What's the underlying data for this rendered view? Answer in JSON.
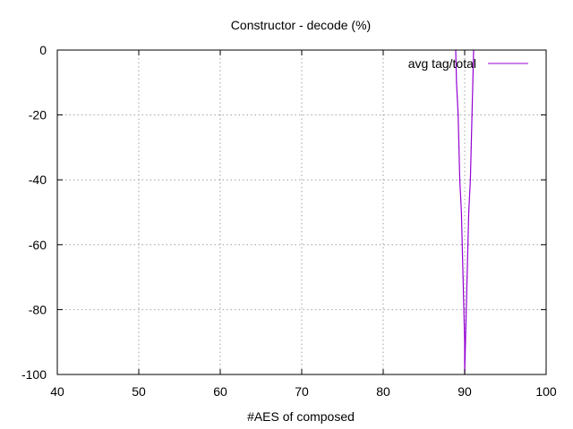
{
  "chart_data": {
    "type": "line",
    "title": "Constructor - decode (%)",
    "xlabel": "#AES of composed",
    "ylabel": "",
    "xlim": [
      40,
      100
    ],
    "ylim": [
      -100,
      0
    ],
    "x_ticks": [
      40,
      50,
      60,
      70,
      80,
      90,
      100
    ],
    "y_ticks": [
      0,
      -20,
      -40,
      -60,
      -80,
      -100
    ],
    "x_tick_labels": [
      "40",
      "50",
      "60",
      "70",
      "80",
      "90",
      "100"
    ],
    "y_tick_labels": [
      "0",
      "-20",
      "-40",
      "-60",
      "-80",
      "-100"
    ],
    "grid": true,
    "legend_position": "top-right",
    "series": [
      {
        "name": "avg tag/total",
        "color": "#9400d3",
        "points": [
          {
            "x": 88.9,
            "y": 0
          },
          {
            "x": 89.0,
            "y": -10
          },
          {
            "x": 89.2,
            "y": -20
          },
          {
            "x": 89.3,
            "y": -30
          },
          {
            "x": 89.4,
            "y": -40
          },
          {
            "x": 89.6,
            "y": -50
          },
          {
            "x": 89.7,
            "y": -60
          },
          {
            "x": 89.8,
            "y": -70
          },
          {
            "x": 89.9,
            "y": -80
          },
          {
            "x": 90.0,
            "y": -90
          },
          {
            "x": 90.0,
            "y": -100
          },
          {
            "x": 90.1,
            "y": -90
          },
          {
            "x": 90.2,
            "y": -80
          },
          {
            "x": 90.3,
            "y": -70
          },
          {
            "x": 90.4,
            "y": -60
          },
          {
            "x": 90.5,
            "y": -50
          },
          {
            "x": 90.7,
            "y": -40
          },
          {
            "x": 90.8,
            "y": -30
          },
          {
            "x": 90.9,
            "y": -20
          },
          {
            "x": 91.0,
            "y": -10
          },
          {
            "x": 91.1,
            "y": 0
          }
        ]
      }
    ]
  }
}
